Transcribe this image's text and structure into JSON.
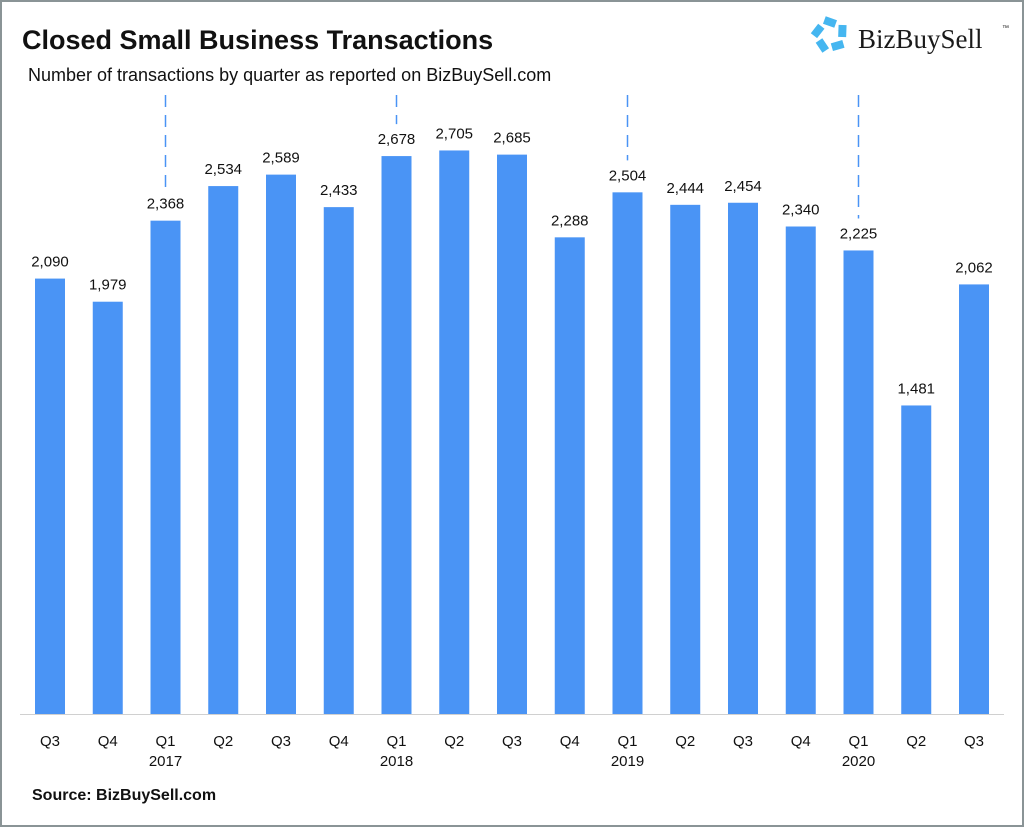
{
  "chart_data": {
    "type": "bar",
    "title": "Closed Small Business Transactions",
    "subtitle": "Number of transactions by quarter as reported on BizBuySell.com",
    "categories": [
      "Q3",
      "Q4",
      "Q1",
      "Q2",
      "Q3",
      "Q4",
      "Q1",
      "Q2",
      "Q3",
      "Q4",
      "Q1",
      "Q2",
      "Q3",
      "Q4",
      "Q1",
      "Q2",
      "Q3"
    ],
    "years": [
      "",
      "",
      "2017",
      "",
      "",
      "",
      "2018",
      "",
      "",
      "",
      "2019",
      "",
      "",
      "",
      "2020",
      "",
      ""
    ],
    "values": [
      2090,
      1979,
      2368,
      2534,
      2589,
      2433,
      2678,
      2705,
      2685,
      2288,
      2504,
      2444,
      2454,
      2340,
      2225,
      1481,
      2062
    ],
    "data_labels": [
      "2,090",
      "1,979",
      "2,368",
      "2,534",
      "2,589",
      "2,433",
      "2,678",
      "2,705",
      "2,685",
      "2,288",
      "2,504",
      "2,444",
      "2,454",
      "2,340",
      "2,225",
      "1,481",
      "2,062"
    ],
    "xlabel": "",
    "ylabel": "",
    "ylim": [
      0,
      3000
    ],
    "grid": false,
    "year_separators": "dashed vertical lines at Q1 of each year",
    "bar_color": "#4a94f5",
    "separator_color": "#4a94f5",
    "source": "Source: BizBuySell.com"
  },
  "logo": {
    "text": "BizBuySell",
    "tm": "™",
    "color": "#45b6f0"
  }
}
